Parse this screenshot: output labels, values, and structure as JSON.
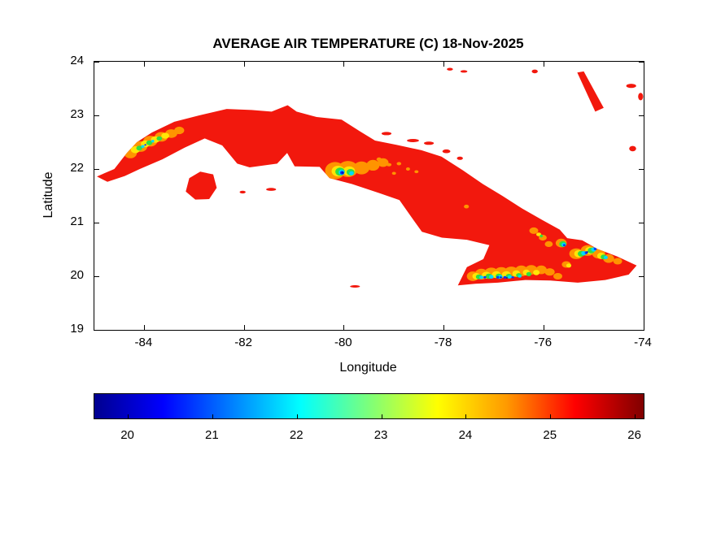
{
  "chart_data": {
    "type": "heatmap",
    "title": "AVERAGE AIR TEMPERATURE (C) 18-Nov-2025",
    "xlabel": "Longitude",
    "ylabel": "Latitude",
    "xlim": [
      -85,
      -74
    ],
    "ylim": [
      19,
      24
    ],
    "xticks": [
      -84,
      -82,
      -80,
      -78,
      -76,
      -74
    ],
    "yticks": [
      19,
      20,
      21,
      22,
      23,
      24
    ],
    "grid": false,
    "colorbar": {
      "orientation": "horizontal",
      "colormap": "jet",
      "range": [
        19.6,
        26.1
      ],
      "ticks": [
        20,
        21,
        22,
        23,
        24,
        25,
        26
      ],
      "stops": [
        [
          "#00008f",
          0
        ],
        [
          "#0000ff",
          12.5
        ],
        [
          "#00ffff",
          37.5
        ],
        [
          "#7dff7a",
          50
        ],
        [
          "#ffff00",
          62.5
        ],
        [
          "#ff9a00",
          75
        ],
        [
          "#ff0000",
          87.5
        ],
        [
          "#800000",
          100
        ]
      ]
    },
    "palette": {
      "red": {
        "hex": "#f2180d",
        "approx_temp_c": 25.3
      },
      "orange": {
        "hex": "#ff9400",
        "approx_temp_c": 24.5
      },
      "yellow": {
        "hex": "#ffe606",
        "approx_temp_c": 23.8
      },
      "green": {
        "hex": "#2fdd44",
        "approx_temp_c": 22.8
      },
      "cyan": {
        "hex": "#00d9ff",
        "approx_temp_c": 21.8
      },
      "blue": {
        "hex": "#0536ff",
        "approx_temp_c": 20.8
      },
      "navy": {
        "hex": "#0011bb",
        "approx_temp_c": 20.0
      }
    },
    "map": {
      "landmasses": [
        {
          "name": "cuba-main-island",
          "color": "red",
          "clip_patches": true,
          "points": [
            [
              -84.95,
              21.86
            ],
            [
              -84.6,
              22.0
            ],
            [
              -84.35,
              22.3
            ],
            [
              -84.15,
              22.5
            ],
            [
              -83.85,
              22.68
            ],
            [
              -83.4,
              22.88
            ],
            [
              -82.9,
              23.0
            ],
            [
              -82.35,
              23.12
            ],
            [
              -81.85,
              23.1
            ],
            [
              -81.45,
              23.07
            ],
            [
              -81.13,
              23.19
            ],
            [
              -80.95,
              23.07
            ],
            [
              -80.55,
              22.97
            ],
            [
              -80.05,
              22.92
            ],
            [
              -79.68,
              22.7
            ],
            [
              -79.38,
              22.53
            ],
            [
              -78.95,
              22.45
            ],
            [
              -78.45,
              22.35
            ],
            [
              -78.05,
              22.23
            ],
            [
              -77.63,
              21.98
            ],
            [
              -77.22,
              21.72
            ],
            [
              -76.83,
              21.5
            ],
            [
              -76.43,
              21.26
            ],
            [
              -76.03,
              21.05
            ],
            [
              -75.68,
              20.87
            ],
            [
              -75.53,
              20.71
            ],
            [
              -75.23,
              20.67
            ],
            [
              -74.93,
              20.51
            ],
            [
              -74.53,
              20.37
            ],
            [
              -74.14,
              20.2
            ],
            [
              -74.3,
              20.03
            ],
            [
              -74.77,
              19.93
            ],
            [
              -75.32,
              19.88
            ],
            [
              -75.87,
              19.92
            ],
            [
              -76.37,
              19.93
            ],
            [
              -76.92,
              19.88
            ],
            [
              -77.37,
              19.86
            ],
            [
              -77.72,
              19.83
            ],
            [
              -77.54,
              20.17
            ],
            [
              -77.21,
              20.32
            ],
            [
              -77.09,
              20.58
            ],
            [
              -77.54,
              20.68
            ],
            [
              -78.04,
              20.72
            ],
            [
              -78.44,
              20.83
            ],
            [
              -78.61,
              21.05
            ],
            [
              -78.89,
              21.42
            ],
            [
              -79.29,
              21.55
            ],
            [
              -79.84,
              21.72
            ],
            [
              -80.29,
              21.83
            ],
            [
              -80.49,
              22.04
            ],
            [
              -80.99,
              22.05
            ],
            [
              -81.14,
              22.3
            ],
            [
              -81.34,
              22.1
            ],
            [
              -81.89,
              22.03
            ],
            [
              -82.14,
              22.1
            ],
            [
              -82.44,
              22.44
            ],
            [
              -82.79,
              22.57
            ],
            [
              -83.19,
              22.4
            ],
            [
              -83.64,
              22.18
            ],
            [
              -84.09,
              22.0
            ],
            [
              -84.39,
              21.87
            ],
            [
              -84.74,
              21.76
            ]
          ]
        },
        {
          "name": "isla-de-la-juventud",
          "color": "red",
          "clip_patches": true,
          "points": [
            [
              -83.17,
              21.58
            ],
            [
              -83.1,
              21.83
            ],
            [
              -82.88,
              21.95
            ],
            [
              -82.62,
              21.9
            ],
            [
              -82.55,
              21.65
            ],
            [
              -82.7,
              21.44
            ],
            [
              -82.98,
              21.43
            ]
          ]
        },
        {
          "name": "long-island-bahamas",
          "color": "red",
          "clip_patches": false,
          "points": [
            [
              -75.33,
              23.8
            ],
            [
              -75.2,
              23.82
            ],
            [
              -74.8,
              23.14
            ],
            [
              -74.97,
              23.07
            ]
          ]
        }
      ],
      "islets": [
        [
          -79.15,
          22.66,
          0.1,
          0.03
        ],
        [
          -78.62,
          22.53,
          0.12,
          0.03
        ],
        [
          -78.3,
          22.48,
          0.1,
          0.03
        ],
        [
          -77.95,
          22.33,
          0.08,
          0.035
        ],
        [
          -77.68,
          22.2,
          0.06,
          0.03
        ],
        [
          -81.46,
          21.62,
          0.1,
          0.028
        ],
        [
          -82.03,
          21.57,
          0.06,
          0.025
        ],
        [
          -79.78,
          19.81,
          0.1,
          0.022
        ],
        [
          -77.88,
          23.86,
          0.06,
          0.025
        ],
        [
          -77.6,
          23.82,
          0.07,
          0.022
        ],
        [
          -76.18,
          23.82,
          0.06,
          0.035
        ],
        [
          -74.25,
          23.55,
          0.1,
          0.04
        ],
        [
          -74.06,
          23.35,
          0.05,
          0.07
        ],
        [
          -74.22,
          22.38,
          0.07,
          0.05
        ]
      ],
      "temperature_patches": [
        [
          "orange",
          -84.28,
          22.3,
          0.13,
          0.1
        ],
        [
          "orange",
          -84.08,
          22.42,
          0.14,
          0.1
        ],
        [
          "orange",
          -83.88,
          22.52,
          0.14,
          0.1
        ],
        [
          "orange",
          -83.66,
          22.6,
          0.13,
          0.09
        ],
        [
          "orange",
          -83.46,
          22.66,
          0.12,
          0.08
        ],
        [
          "orange",
          -83.3,
          22.72,
          0.1,
          0.07
        ],
        [
          "yellow",
          -84.18,
          22.36,
          0.09,
          0.065
        ],
        [
          "yellow",
          -83.98,
          22.47,
          0.09,
          0.065
        ],
        [
          "yellow",
          -83.78,
          22.55,
          0.09,
          0.06
        ],
        [
          "yellow",
          -83.58,
          22.62,
          0.08,
          0.055
        ],
        [
          "green",
          -84.1,
          22.39,
          0.06,
          0.045
        ],
        [
          "green",
          -83.9,
          22.49,
          0.06,
          0.045
        ],
        [
          "green",
          -83.7,
          22.57,
          0.055,
          0.04
        ],
        [
          "cyan",
          -84.03,
          22.42,
          0.035,
          0.028
        ],
        [
          "cyan",
          -83.83,
          22.52,
          0.03,
          0.025
        ],
        [
          "blue",
          -83.98,
          22.45,
          0.02,
          0.016
        ],
        [
          "orange",
          -80.18,
          21.97,
          0.2,
          0.16
        ],
        [
          "orange",
          -79.92,
          22.0,
          0.2,
          0.15
        ],
        [
          "orange",
          -79.65,
          22.02,
          0.16,
          0.12
        ],
        [
          "orange",
          -79.42,
          22.07,
          0.13,
          0.1
        ],
        [
          "orange",
          -79.22,
          22.12,
          0.11,
          0.08
        ],
        [
          "yellow",
          -80.12,
          21.96,
          0.13,
          0.1
        ],
        [
          "yellow",
          -79.9,
          21.96,
          0.12,
          0.09
        ],
        [
          "green",
          -80.08,
          21.95,
          0.095,
          0.075
        ],
        [
          "green",
          -79.87,
          21.94,
          0.08,
          0.06
        ],
        [
          "cyan",
          -80.05,
          21.94,
          0.06,
          0.05
        ],
        [
          "cyan",
          -79.85,
          21.92,
          0.045,
          0.038
        ],
        [
          "blue",
          -80.04,
          21.93,
          0.04,
          0.033
        ],
        [
          "navy",
          -80.03,
          21.93,
          0.025,
          0.02
        ],
        [
          "orange",
          -79.3,
          22.18,
          0.05,
          0.035
        ],
        [
          "orange",
          -79.1,
          22.08,
          0.05,
          0.03
        ],
        [
          "orange",
          -78.9,
          22.1,
          0.045,
          0.03
        ],
        [
          "orange",
          -78.72,
          22.0,
          0.04,
          0.03
        ],
        [
          "orange",
          -79.0,
          21.92,
          0.04,
          0.028
        ],
        [
          "orange",
          -78.55,
          21.95,
          0.04,
          0.028
        ],
        [
          "orange",
          -77.55,
          21.3,
          0.05,
          0.035
        ],
        [
          "orange",
          -76.2,
          20.85,
          0.09,
          0.06
        ],
        [
          "orange",
          -76.02,
          20.72,
          0.08,
          0.055
        ],
        [
          "orange",
          -75.9,
          20.6,
          0.08,
          0.055
        ],
        [
          "yellow",
          -76.1,
          20.78,
          0.05,
          0.035
        ],
        [
          "green",
          -76.05,
          20.75,
          0.03,
          0.025
        ],
        [
          "orange",
          -75.65,
          20.62,
          0.11,
          0.08
        ],
        [
          "green",
          -75.62,
          20.6,
          0.07,
          0.055
        ],
        [
          "cyan",
          -75.6,
          20.59,
          0.045,
          0.035
        ],
        [
          "blue",
          -75.59,
          20.58,
          0.025,
          0.02
        ],
        [
          "orange",
          -77.42,
          20.0,
          0.12,
          0.09
        ],
        [
          "orange",
          -77.25,
          20.04,
          0.13,
          0.1
        ],
        [
          "orange",
          -77.05,
          20.06,
          0.14,
          0.1
        ],
        [
          "orange",
          -76.85,
          20.07,
          0.14,
          0.1
        ],
        [
          "orange",
          -76.65,
          20.08,
          0.14,
          0.1
        ],
        [
          "orange",
          -76.45,
          20.1,
          0.13,
          0.1
        ],
        [
          "orange",
          -76.25,
          20.12,
          0.12,
          0.09
        ],
        [
          "orange",
          -76.05,
          20.12,
          0.11,
          0.08
        ],
        [
          "orange",
          -75.88,
          20.08,
          0.1,
          0.07
        ],
        [
          "orange",
          -75.72,
          20.0,
          0.09,
          0.06
        ],
        [
          "orange",
          -75.55,
          20.22,
          0.09,
          0.06
        ],
        [
          "yellow",
          -77.35,
          20.0,
          0.08,
          0.06
        ],
        [
          "yellow",
          -77.15,
          20.02,
          0.09,
          0.065
        ],
        [
          "yellow",
          -76.95,
          20.03,
          0.09,
          0.065
        ],
        [
          "yellow",
          -76.75,
          20.03,
          0.09,
          0.065
        ],
        [
          "yellow",
          -76.55,
          20.05,
          0.08,
          0.06
        ],
        [
          "yellow",
          -76.35,
          20.07,
          0.07,
          0.055
        ],
        [
          "yellow",
          -76.15,
          20.07,
          0.065,
          0.05
        ],
        [
          "yellow",
          -75.5,
          20.2,
          0.05,
          0.04
        ],
        [
          "green",
          -77.3,
          19.99,
          0.06,
          0.045
        ],
        [
          "green",
          -77.1,
          20.0,
          0.065,
          0.05
        ],
        [
          "green",
          -76.9,
          20.0,
          0.065,
          0.05
        ],
        [
          "green",
          -76.7,
          20.0,
          0.06,
          0.045
        ],
        [
          "green",
          -76.5,
          20.02,
          0.055,
          0.04
        ],
        [
          "green",
          -76.3,
          20.04,
          0.05,
          0.04
        ],
        [
          "cyan",
          -77.25,
          19.98,
          0.04,
          0.032
        ],
        [
          "cyan",
          -77.05,
          19.99,
          0.045,
          0.035
        ],
        [
          "cyan",
          -76.87,
          19.99,
          0.045,
          0.035
        ],
        [
          "cyan",
          -76.68,
          19.99,
          0.04,
          0.03
        ],
        [
          "cyan",
          -76.48,
          20.0,
          0.035,
          0.028
        ],
        [
          "blue",
          -77.18,
          19.98,
          0.028,
          0.022
        ],
        [
          "blue",
          -76.92,
          19.98,
          0.03,
          0.024
        ],
        [
          "blue",
          -76.78,
          19.98,
          0.03,
          0.024
        ],
        [
          "blue",
          -76.62,
          19.98,
          0.026,
          0.02
        ],
        [
          "navy",
          -76.86,
          19.98,
          0.02,
          0.016
        ],
        [
          "navy",
          -76.74,
          19.97,
          0.018,
          0.014
        ],
        [
          "orange",
          -75.35,
          20.42,
          0.14,
          0.1
        ],
        [
          "orange",
          -75.12,
          20.48,
          0.14,
          0.1
        ],
        [
          "orange",
          -74.9,
          20.42,
          0.13,
          0.09
        ],
        [
          "orange",
          -74.7,
          20.33,
          0.11,
          0.08
        ],
        [
          "orange",
          -74.52,
          20.28,
          0.09,
          0.06
        ],
        [
          "yellow",
          -75.3,
          20.42,
          0.09,
          0.07
        ],
        [
          "yellow",
          -75.08,
          20.48,
          0.09,
          0.07
        ],
        [
          "yellow",
          -74.85,
          20.38,
          0.08,
          0.06
        ],
        [
          "green",
          -75.25,
          20.42,
          0.07,
          0.055
        ],
        [
          "green",
          -75.05,
          20.48,
          0.07,
          0.055
        ],
        [
          "green",
          -74.8,
          20.36,
          0.06,
          0.045
        ],
        [
          "cyan",
          -75.2,
          20.43,
          0.05,
          0.04
        ],
        [
          "cyan",
          -75.0,
          20.5,
          0.05,
          0.04
        ],
        [
          "cyan",
          -74.76,
          20.35,
          0.04,
          0.03
        ],
        [
          "blue",
          -75.15,
          20.44,
          0.03,
          0.025
        ],
        [
          "blue",
          -74.97,
          20.51,
          0.03,
          0.025
        ],
        [
          "navy",
          -75.13,
          20.45,
          0.018,
          0.015
        ]
      ]
    }
  }
}
